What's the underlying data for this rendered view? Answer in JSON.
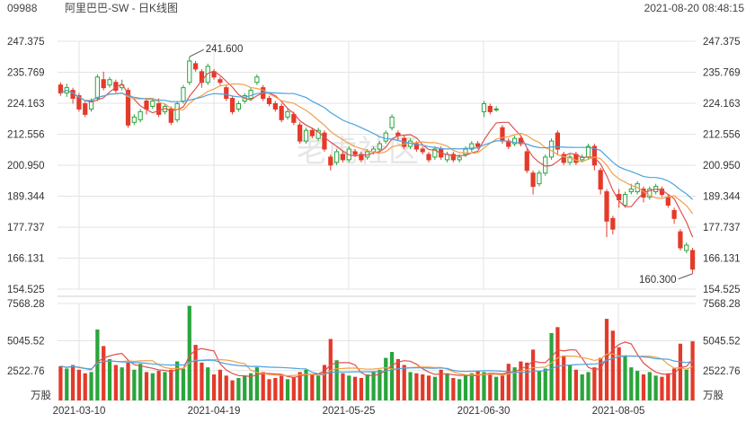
{
  "header": {
    "code": "09988",
    "name": "阿里巴巴-SW - 日K线图",
    "datetime": "2021-08-20 08:48:15"
  },
  "watermark": "老虎社区",
  "colors": {
    "up": "#2aa53c",
    "down": "#e43a2a",
    "ma_red": "#e0504e",
    "ma_orange": "#f0a04b",
    "ma_blue": "#4ba3e0",
    "grid": "#e3e3e3"
  },
  "chart_data": {
    "type": "candlestick",
    "price_axis": {
      "ticks": [
        "247.375",
        "235.769",
        "224.163",
        "212.556",
        "200.950",
        "189.344",
        "177.737",
        "166.131",
        "154.525"
      ],
      "range": [
        154.525,
        247.375
      ]
    },
    "volume_axis": {
      "ticks": [
        "7568.28",
        "5045.52",
        "2522.76"
      ],
      "unit": "万股",
      "range": [
        0,
        8200
      ]
    },
    "date_labels": [
      "2021-03-10",
      "2021-04-19",
      "2021-05-25",
      "2021-06-30",
      "2021-08-05"
    ],
    "annotations": {
      "high": "241.600",
      "low": "160.300"
    },
    "candles": [
      [
        231.0,
        228.0,
        232.0,
        227.0,
        2900
      ],
      [
        228.0,
        230.0,
        231.5,
        226.5,
        2700
      ],
      [
        229.0,
        226.0,
        230.0,
        224.0,
        3000
      ],
      [
        227.0,
        222.0,
        228.0,
        221.0,
        2600
      ],
      [
        224.0,
        220.0,
        225.0,
        219.0,
        2300
      ],
      [
        222.0,
        225.0,
        226.0,
        221.0,
        2400
      ],
      [
        226.0,
        234.0,
        235.0,
        225.0,
        6000
      ],
      [
        233.0,
        230.0,
        236.0,
        229.0,
        4600
      ],
      [
        231.0,
        233.0,
        234.0,
        230.0,
        3500
      ],
      [
        232.0,
        229.0,
        233.0,
        228.0,
        3000
      ],
      [
        230.0,
        231.0,
        233.0,
        229.0,
        2800
      ],
      [
        229.0,
        216.0,
        230.0,
        215.0,
        3200
      ],
      [
        217.0,
        219.0,
        220.0,
        216.0,
        2600
      ],
      [
        218.0,
        221.0,
        222.0,
        217.0,
        3100
      ],
      [
        225.0,
        222.0,
        226.0,
        220.0,
        2400
      ],
      [
        223.0,
        225.0,
        226.0,
        222.0,
        2300
      ],
      [
        224.0,
        220.0,
        226.0,
        219.0,
        2500
      ],
      [
        221.0,
        223.0,
        224.0,
        220.0,
        2400
      ],
      [
        222.0,
        217.0,
        223.0,
        216.0,
        2600
      ],
      [
        218.0,
        224.0,
        225.0,
        217.0,
        3300
      ],
      [
        225.0,
        230.0,
        231.0,
        224.0,
        2700
      ],
      [
        232.0,
        240.0,
        241.6,
        231.0,
        8000
      ],
      [
        239.0,
        237.0,
        240.0,
        236.0,
        4700
      ],
      [
        236.0,
        232.0,
        237.0,
        230.0,
        3200
      ],
      [
        232.0,
        238.0,
        239.0,
        231.0,
        2800
      ],
      [
        236.0,
        234.0,
        237.0,
        233.0,
        2200
      ],
      [
        233.0,
        232.0,
        234.0,
        231.0,
        2600
      ],
      [
        230.0,
        226.0,
        231.0,
        225.0,
        2100
      ],
      [
        226.0,
        221.0,
        227.0,
        220.0,
        1700
      ],
      [
        222.0,
        224.0,
        225.0,
        221.0,
        1900
      ],
      [
        225.0,
        227.0,
        228.0,
        224.0,
        2100
      ],
      [
        226.0,
        229.0,
        230.0,
        225.0,
        2300
      ],
      [
        232.0,
        234.0,
        235.0,
        231.0,
        2800
      ],
      [
        230.0,
        226.0,
        231.0,
        225.0,
        2400
      ],
      [
        226.0,
        224.0,
        227.0,
        223.0,
        1800
      ],
      [
        224.0,
        222.0,
        225.0,
        221.0,
        1900
      ],
      [
        223.0,
        218.0,
        224.0,
        217.0,
        2200
      ],
      [
        219.0,
        221.0,
        222.0,
        218.0,
        1800
      ],
      [
        220.0,
        217.0,
        221.0,
        216.0,
        2000
      ],
      [
        216.0,
        210.0,
        217.0,
        209.0,
        2400
      ],
      [
        210.0,
        214.0,
        215.0,
        209.0,
        2600
      ],
      [
        214.0,
        212.0,
        215.0,
        211.0,
        2200
      ],
      [
        211.0,
        214.0,
        215.0,
        210.0,
        2100
      ],
      [
        213.0,
        207.0,
        214.0,
        206.0,
        3000
      ],
      [
        204.0,
        201.0,
        205.0,
        199.0,
        5200
      ],
      [
        202.0,
        206.0,
        207.0,
        201.0,
        3400
      ],
      [
        205.0,
        203.0,
        206.0,
        202.0,
        2300
      ],
      [
        203.0,
        207.0,
        208.0,
        202.0,
        2100
      ],
      [
        206.0,
        205.0,
        207.0,
        204.0,
        2000
      ],
      [
        205.0,
        203.0,
        206.0,
        202.0,
        1900
      ],
      [
        204.0,
        206.0,
        207.0,
        203.0,
        2200
      ],
      [
        206.0,
        207.0,
        208.0,
        205.0,
        2400
      ],
      [
        207.0,
        209.0,
        210.0,
        206.0,
        2600
      ],
      [
        210.0,
        213.0,
        214.0,
        209.0,
        3600
      ],
      [
        215.0,
        219.0,
        220.0,
        214.0,
        4100
      ],
      [
        213.0,
        212.0,
        214.0,
        210.0,
        3500
      ],
      [
        211.0,
        208.0,
        212.0,
        207.0,
        3000
      ],
      [
        208.0,
        210.0,
        211.0,
        207.0,
        2400
      ],
      [
        209.0,
        207.0,
        210.0,
        206.0,
        2300
      ],
      [
        207.0,
        206.0,
        208.0,
        205.0,
        2200
      ],
      [
        205.0,
        203.0,
        206.0,
        202.0,
        2100
      ],
      [
        204.0,
        207.0,
        208.0,
        203.0,
        2000
      ],
      [
        207.0,
        204.0,
        208.0,
        203.0,
        2600
      ],
      [
        203.0,
        205.0,
        206.0,
        202.0,
        2300
      ],
      [
        205.0,
        203.0,
        206.0,
        202.0,
        1900
      ],
      [
        203.0,
        204.0,
        205.0,
        202.0,
        1800
      ],
      [
        205.0,
        207.0,
        208.0,
        204.0,
        2100
      ],
      [
        207.0,
        209.0,
        210.0,
        206.0,
        2300
      ],
      [
        209.0,
        208.0,
        210.0,
        207.0,
        2500
      ],
      [
        221.0,
        224.0,
        225.0,
        219.0,
        2400
      ],
      [
        223.0,
        221.0,
        224.0,
        220.0,
        2200
      ],
      [
        222.0,
        222.0,
        223.0,
        221.0,
        2000
      ],
      [
        215.0,
        210.0,
        216.0,
        209.0,
        2100
      ],
      [
        210.0,
        208.0,
        211.0,
        207.0,
        3100
      ],
      [
        209.0,
        211.0,
        212.0,
        208.0,
        2800
      ],
      [
        211.0,
        209.0,
        212.0,
        208.0,
        3300
      ],
      [
        206.0,
        199.0,
        207.0,
        198.0,
        3200
      ],
      [
        198.0,
        193.0,
        199.0,
        190.0,
        4300
      ],
      [
        194.0,
        198.0,
        199.0,
        193.0,
        2500
      ],
      [
        198.0,
        204.0,
        205.0,
        197.0,
        2700
      ],
      [
        204.0,
        210.0,
        211.0,
        203.0,
        5700
      ],
      [
        213.0,
        207.0,
        214.0,
        205.0,
        6200
      ],
      [
        205.0,
        202.0,
        206.0,
        201.0,
        3800
      ],
      [
        202.0,
        204.0,
        205.0,
        201.0,
        3000
      ],
      [
        205.0,
        202.0,
        206.0,
        201.0,
        2600
      ],
      [
        203.0,
        204.0,
        205.0,
        202.0,
        2200
      ],
      [
        204.0,
        208.0,
        209.0,
        203.0,
        2400
      ],
      [
        208.0,
        201.0,
        209.0,
        199.0,
        2800
      ],
      [
        199.0,
        192.0,
        200.0,
        190.0,
        3600
      ],
      [
        191.0,
        180.0,
        192.0,
        174.0,
        6900
      ],
      [
        181.0,
        177.0,
        182.0,
        175.0,
        5900
      ],
      [
        190.0,
        188.0,
        192.0,
        185.0,
        4500
      ],
      [
        186.0,
        190.0,
        191.0,
        185.0,
        3800
      ],
      [
        191.0,
        192.0,
        194.0,
        190.0,
        2800
      ],
      [
        191.0,
        194.0,
        195.0,
        190.0,
        2500
      ],
      [
        192.0,
        189.0,
        193.0,
        187.0,
        2200
      ],
      [
        189.0,
        192.0,
        193.0,
        188.0,
        2400
      ],
      [
        191.0,
        193.0,
        194.0,
        190.0,
        2100
      ],
      [
        192.0,
        190.0,
        193.0,
        189.0,
        2000
      ],
      [
        189.0,
        186.0,
        190.0,
        185.0,
        2300
      ],
      [
        184.0,
        181.0,
        185.0,
        179.0,
        2700
      ],
      [
        176.0,
        170.0,
        177.0,
        169.0,
        4800
      ],
      [
        169.0,
        171.0,
        172.0,
        168.0,
        2600
      ],
      [
        169.0,
        162.0,
        170.0,
        160.3,
        5000
      ]
    ]
  }
}
